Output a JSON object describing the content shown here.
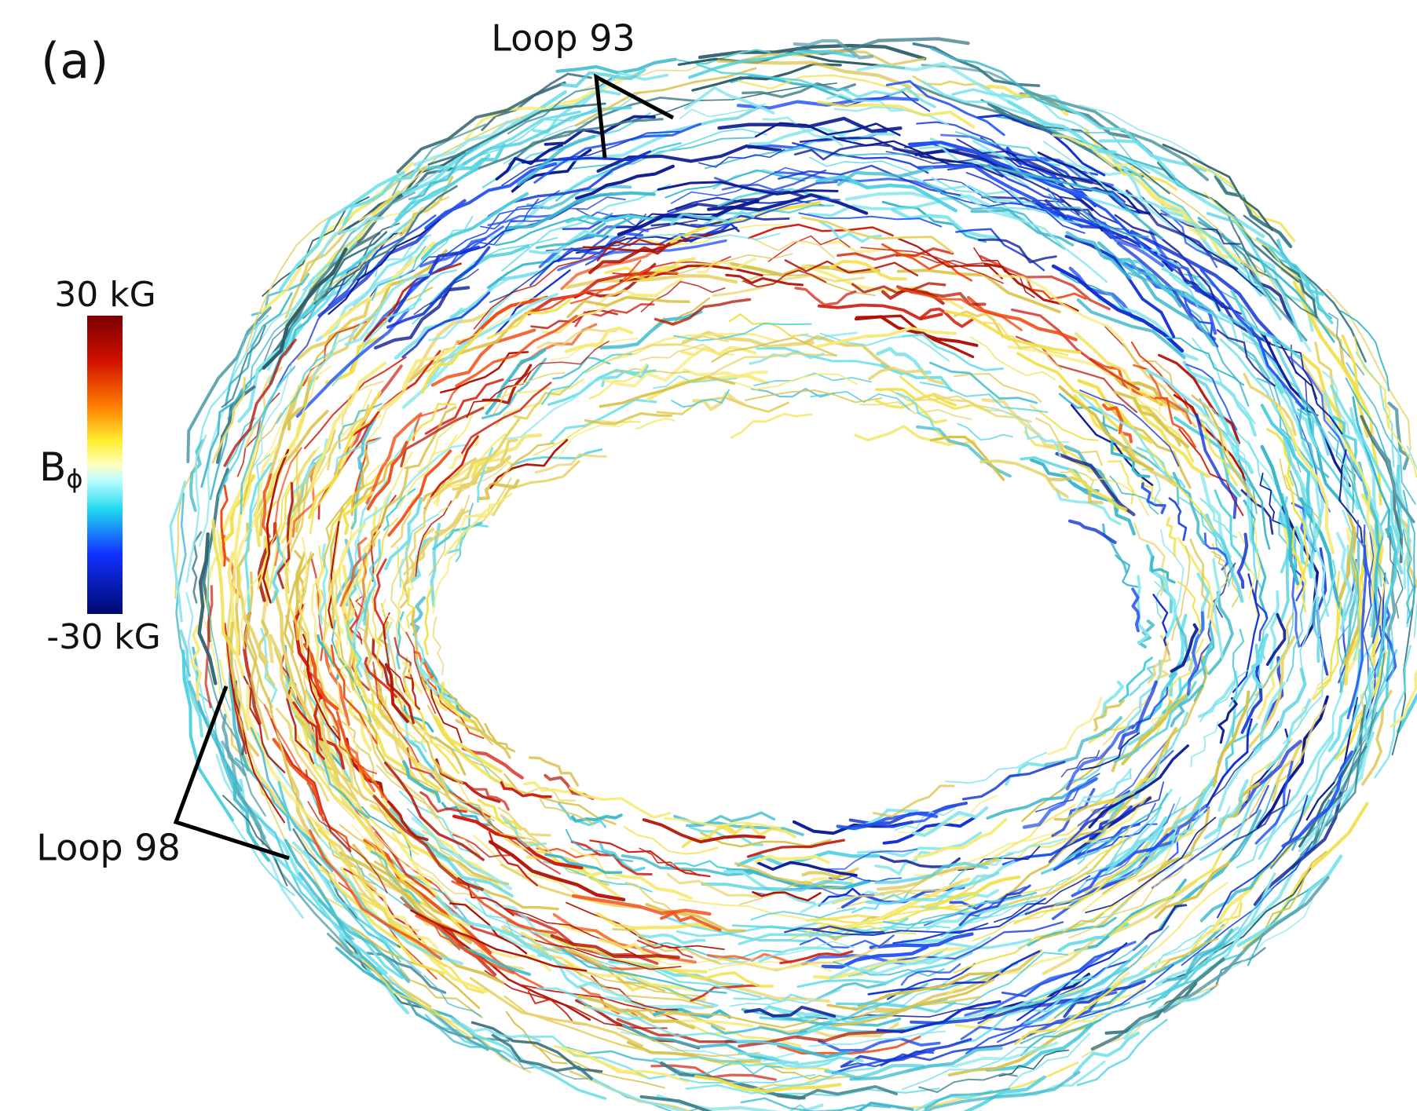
{
  "panel_label": "(a)",
  "annotations": {
    "loop_top": "Loop 93",
    "loop_left": "Loop 98"
  },
  "colorbar": {
    "max_label": "30 kG",
    "min_label": "-30 kG",
    "symbol": "B",
    "subscript": "ϕ"
  }
}
